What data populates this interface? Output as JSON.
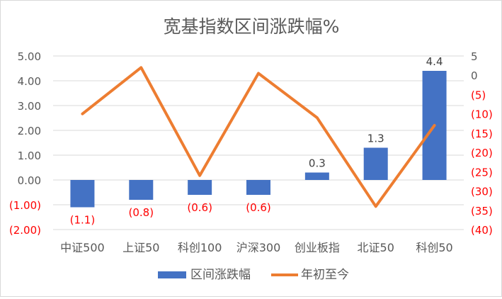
{
  "chart_data": {
    "type": "bar+line",
    "title": "宽基指数区间涨跌幅%",
    "categories": [
      "中证500",
      "上证50",
      "科创100",
      "沪深300",
      "创业板指",
      "北证50",
      "科创50"
    ],
    "y_left": {
      "range": [
        -2,
        5
      ],
      "ticks": [
        5,
        4,
        3,
        2,
        1,
        0,
        -1,
        -2
      ],
      "tick_labels": [
        "5.00",
        "4.00",
        "3.00",
        "2.00",
        "1.00",
        "0.00",
        "(1.00)",
        "(2.00)"
      ]
    },
    "y_right": {
      "range": [
        -40,
        5
      ],
      "ticks": [
        5,
        0,
        -5,
        -10,
        -15,
        -20,
        -25,
        -30,
        -35,
        -40
      ],
      "tick_labels": [
        "5",
        "0",
        "(5)",
        "(10)",
        "(15)",
        "(20)",
        "(25)",
        "(30)",
        "(35)",
        "(40)"
      ]
    },
    "series": [
      {
        "name": "区间涨跌幅",
        "type": "bar",
        "axis": "left",
        "color": "#4472c4",
        "values": [
          -1.1,
          -0.8,
          -0.6,
          -0.6,
          0.3,
          1.3,
          4.4
        ],
        "labels": [
          "(1.1)",
          "(0.8)",
          "(0.6)",
          "(0.6)",
          "0.3",
          "1.3",
          "4.4"
        ]
      },
      {
        "name": "年初至今",
        "type": "line",
        "axis": "right",
        "color": "#ed7d31",
        "values": [
          -10,
          2,
          -26,
          0.5,
          -11,
          -34,
          -13
        ]
      }
    ],
    "legend": "bottom",
    "colors": {
      "negative_label": "#ff0000",
      "positive_label": "#404040",
      "gridline": "#d9d9d9",
      "axis_text": "#595959"
    }
  }
}
